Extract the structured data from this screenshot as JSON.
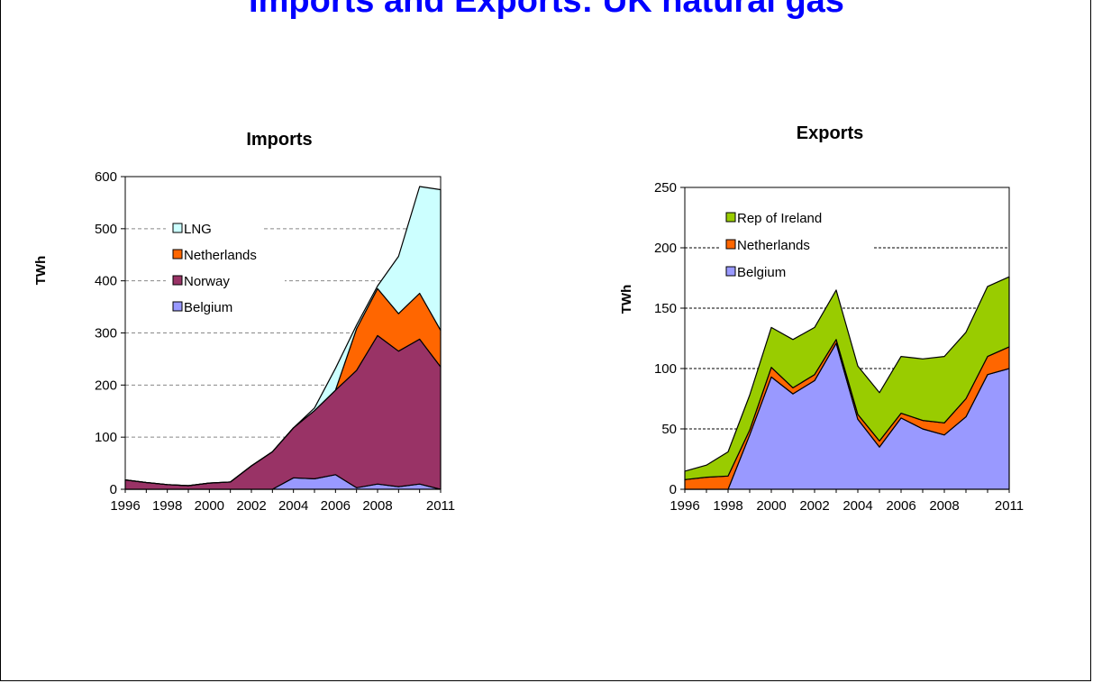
{
  "page": {
    "title": "Imports and Exports: UK natural gas"
  },
  "colors": {
    "lng": "#ccffff",
    "netherlands": "#ff6600",
    "norway": "#993366",
    "belgium": "#9999ff",
    "ireland": "#99cc00"
  },
  "chart_data": [
    {
      "type": "area",
      "stacked": true,
      "title": "Imports",
      "xlabel": "",
      "ylabel": "TWh",
      "ylim": [
        0,
        600
      ],
      "yticks": [
        0,
        100,
        200,
        300,
        400,
        500,
        600
      ],
      "xlim": [
        1996,
        2011
      ],
      "xticks": [
        "1996",
        "1998",
        "2000",
        "2002",
        "2004",
        "2006",
        "2008",
        "2011"
      ],
      "grid": true,
      "legend_position": "upper-left-inside",
      "x": [
        1996,
        1997,
        1998,
        1999,
        2000,
        2001,
        2002,
        2003,
        2004,
        2005,
        2006,
        2007,
        2008,
        2009,
        2010,
        2011
      ],
      "series": [
        {
          "name": "Belgium",
          "color_key": "belgium",
          "values": [
            0,
            0,
            0,
            0,
            0,
            0,
            0,
            0,
            22,
            20,
            28,
            3,
            10,
            5,
            10,
            0
          ]
        },
        {
          "name": "Norway",
          "color_key": "norway",
          "values": [
            18,
            13,
            9,
            7,
            12,
            14,
            45,
            72,
            96,
            131,
            162,
            225,
            285,
            260,
            278,
            235
          ]
        },
        {
          "name": "Netherlands",
          "color_key": "netherlands",
          "values": [
            0,
            0,
            0,
            0,
            0,
            0,
            0,
            0,
            0,
            0,
            0,
            80,
            90,
            72,
            88,
            70
          ]
        },
        {
          "name": "LNG",
          "color_key": "lng",
          "values": [
            0,
            0,
            0,
            0,
            0,
            0,
            0,
            0,
            0,
            5,
            42,
            7,
            5,
            110,
            205,
            270
          ]
        }
      ]
    },
    {
      "type": "area",
      "stacked": true,
      "title": "Exports",
      "xlabel": "",
      "ylabel": "TWh",
      "ylim": [
        0,
        250
      ],
      "yticks": [
        0,
        50,
        100,
        150,
        200,
        250
      ],
      "xlim": [
        1996,
        2011
      ],
      "xticks": [
        "1996",
        "1998",
        "2000",
        "2002",
        "2004",
        "2006",
        "2008",
        "2011"
      ],
      "grid": true,
      "legend_position": "upper-left-inside",
      "x": [
        1996,
        1997,
        1998,
        1999,
        2000,
        2001,
        2002,
        2003,
        2004,
        2005,
        2006,
        2007,
        2008,
        2009,
        2010,
        2011
      ],
      "series": [
        {
          "name": "Belgium",
          "color_key": "belgium",
          "values": [
            0,
            0,
            0,
            45,
            93,
            79,
            90,
            121,
            58,
            35,
            59,
            50,
            45,
            60,
            95,
            100
          ]
        },
        {
          "name": "Netherlands",
          "color_key": "netherlands",
          "values": [
            8,
            10,
            11,
            4,
            8,
            5,
            5,
            3,
            4,
            5,
            4,
            7,
            10,
            15,
            15,
            18
          ]
        },
        {
          "name": "Rep of Ireland",
          "color_key": "ireland",
          "values": [
            7,
            10,
            20,
            29,
            33,
            40,
            39,
            41,
            40,
            40,
            47,
            51,
            55,
            55,
            58,
            58
          ]
        }
      ]
    }
  ]
}
